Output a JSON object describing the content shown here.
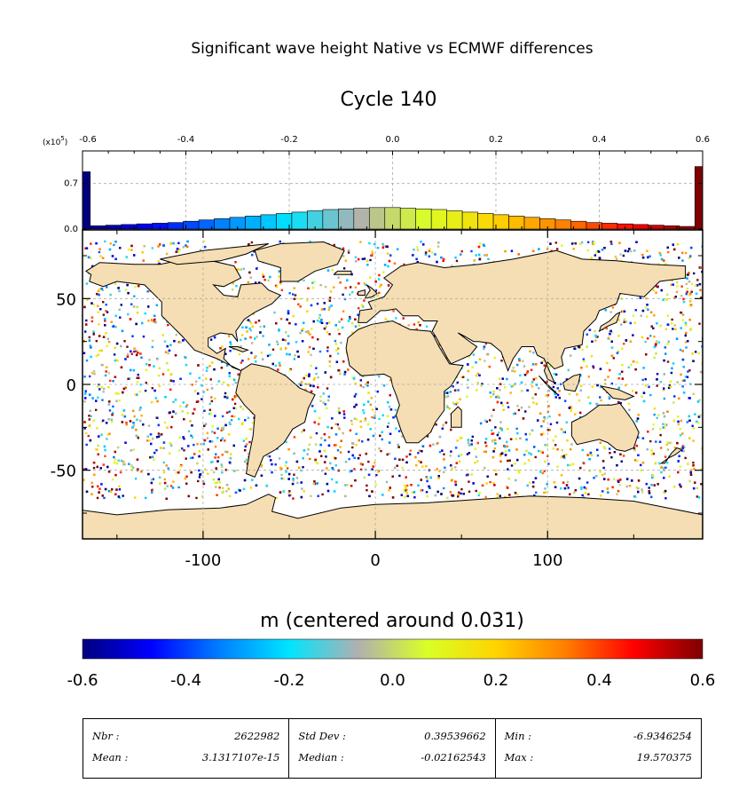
{
  "title": "Significant wave height Native vs ECMWF differences",
  "subtitle": "Cycle 140",
  "colors": {
    "land": "#f5deb3",
    "ocean_bg": "#ffffff",
    "colormap": [
      "#00007f",
      "#0000ff",
      "#0080ff",
      "#00e5ff",
      "#b0b0b0",
      "#d9ff26",
      "#ffd400",
      "#ff7f00",
      "#ff0000",
      "#7f0000"
    ]
  },
  "histogram": {
    "scale_label": "(x10",
    "scale_exp": "5",
    "scale_suffix": ")",
    "x_ticks": [
      "-0.6",
      "-0.4",
      "-0.2",
      "0.0",
      "0.2",
      "0.4",
      "0.6"
    ],
    "y_ticks": [
      "0.0",
      "0.7"
    ]
  },
  "chart_data": [
    {
      "type": "histogram",
      "title": "",
      "x_range": [
        -0.6,
        0.6
      ],
      "y_range": [
        0,
        1.2
      ],
      "y_unit_scale": 100000,
      "bins_x": [
        -0.6,
        -0.57,
        -0.54,
        -0.51,
        -0.48,
        -0.45,
        -0.42,
        -0.39,
        -0.36,
        -0.33,
        -0.3,
        -0.27,
        -0.24,
        -0.21,
        -0.18,
        -0.15,
        -0.12,
        -0.09,
        -0.06,
        -0.03,
        0.0,
        0.03,
        0.06,
        0.09,
        0.12,
        0.15,
        0.18,
        0.21,
        0.24,
        0.27,
        0.3,
        0.33,
        0.36,
        0.39,
        0.42,
        0.45,
        0.48,
        0.51,
        0.54,
        0.57,
        0.6
      ],
      "bins_y": [
        0.88,
        0.05,
        0.06,
        0.07,
        0.08,
        0.09,
        0.1,
        0.12,
        0.14,
        0.16,
        0.18,
        0.2,
        0.22,
        0.24,
        0.26,
        0.28,
        0.3,
        0.31,
        0.32,
        0.33,
        0.33,
        0.32,
        0.31,
        0.3,
        0.28,
        0.26,
        0.24,
        0.22,
        0.2,
        0.18,
        0.16,
        0.14,
        0.12,
        0.1,
        0.09,
        0.08,
        0.07,
        0.06,
        0.05,
        0.04,
        0.96
      ]
    },
    {
      "type": "heatmap",
      "title": "",
      "xlabel": "",
      "ylabel": "",
      "x_range": [
        -170,
        190
      ],
      "y_range": [
        -90,
        90
      ],
      "x_ticks": [
        "-100",
        "0",
        "100"
      ],
      "y_ticks": [
        "50",
        "0",
        "-50"
      ]
    },
    {
      "type": "colorbar",
      "title": "m (centered around 0.031)",
      "range": [
        -0.6,
        0.6
      ],
      "ticks": [
        "-0.6",
        "-0.4",
        "-0.2",
        "0.0",
        "0.2",
        "0.4",
        "0.6"
      ]
    }
  ],
  "stats": {
    "col1": {
      "label1": "Nbr :",
      "value1": "2622982",
      "label2": "Mean :",
      "value2": "3.1317107e-15"
    },
    "col2": {
      "label1": "Std Dev :",
      "value1": "0.39539662",
      "label2": "Median :",
      "value2": "-0.02162543"
    },
    "col3": {
      "label1": "Min :",
      "value1": "-6.9346254",
      "label2": "Max :",
      "value2": "19.570375"
    }
  }
}
